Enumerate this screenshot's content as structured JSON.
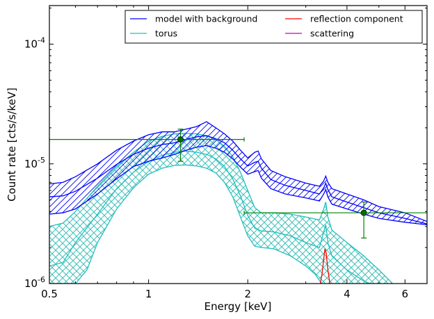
{
  "chart_data": {
    "type": "line",
    "xlabel": "Energy [keV]",
    "ylabel": "Count rate [cts/s/keV]",
    "xscale": "log",
    "yscale": "log",
    "xlim": [
      0.5,
      7.0
    ],
    "ylim": [
      1e-06,
      0.00021
    ],
    "x_ticks": [
      {
        "value": 0.5,
        "label": "0.5"
      },
      {
        "value": 1,
        "label": "1"
      },
      {
        "value": 2,
        "label": "2"
      },
      {
        "value": 4,
        "label": "4"
      },
      {
        "value": 6,
        "label": "6"
      }
    ],
    "y_ticks": [
      {
        "value": 1e-06,
        "base": "10",
        "exp": "-6"
      },
      {
        "value": 1e-05,
        "base": "10",
        "exp": "-5"
      },
      {
        "value": 0.0001,
        "base": "10",
        "exp": "-4"
      }
    ],
    "legend": {
      "placement": "top-right",
      "columns": 2,
      "entries": [
        {
          "label": "model with background",
          "color": "#0000ff"
        },
        {
          "label": "torus",
          "color": "#1fbfbf"
        },
        {
          "label": "reflection component",
          "color": "#ff0000"
        },
        {
          "label": "scattering",
          "color": "#bf00bf"
        }
      ]
    },
    "series": [
      {
        "name": "model with background",
        "color": "#0000ff",
        "hatch": "diagonal",
        "upper": [
          [
            0.5,
            6.8e-06
          ],
          [
            0.55,
            7e-06
          ],
          [
            0.6,
            7.8e-06
          ],
          [
            0.7,
            1e-05
          ],
          [
            0.8,
            1.3e-05
          ],
          [
            0.9,
            1.55e-05
          ],
          [
            1.0,
            1.75e-05
          ],
          [
            1.1,
            1.85e-05
          ],
          [
            1.2,
            1.85e-05
          ],
          [
            1.3,
            1.95e-05
          ],
          [
            1.4,
            2.05e-05
          ],
          [
            1.5,
            2.25e-05
          ],
          [
            1.6,
            2e-05
          ],
          [
            1.7,
            1.78e-05
          ],
          [
            1.8,
            1.55e-05
          ],
          [
            1.9,
            1.3e-05
          ],
          [
            2.0,
            1.12e-05
          ],
          [
            2.1,
            1.25e-05
          ],
          [
            2.15,
            1.28e-05
          ],
          [
            2.2,
            1.1e-05
          ],
          [
            2.35,
            8.8e-06
          ],
          [
            2.6,
            7.8e-06
          ],
          [
            3.0,
            6.9e-06
          ],
          [
            3.3,
            6.5e-06
          ],
          [
            3.4,
            7.2e-06
          ],
          [
            3.45,
            7.9e-06
          ],
          [
            3.5,
            7e-06
          ],
          [
            3.6,
            6.2e-06
          ],
          [
            4.0,
            5.6e-06
          ],
          [
            4.5,
            5e-06
          ],
          [
            5.0,
            4.4e-06
          ],
          [
            6.0,
            3.9e-06
          ],
          [
            7.0,
            3.3e-06
          ]
        ],
        "lower": [
          [
            0.5,
            3.8e-06
          ],
          [
            0.55,
            3.9e-06
          ],
          [
            0.6,
            4.2e-06
          ],
          [
            0.7,
            5.6e-06
          ],
          [
            0.8,
            7.5e-06
          ],
          [
            0.9,
            9.5e-06
          ],
          [
            1.0,
            1.05e-05
          ],
          [
            1.1,
            1.12e-05
          ],
          [
            1.2,
            1.2e-05
          ],
          [
            1.3,
            1.3e-05
          ],
          [
            1.4,
            1.38e-05
          ],
          [
            1.5,
            1.42e-05
          ],
          [
            1.6,
            1.35e-05
          ],
          [
            1.7,
            1.25e-05
          ],
          [
            1.8,
            1.1e-05
          ],
          [
            1.9,
            9.4e-06
          ],
          [
            2.0,
            8.2e-06
          ],
          [
            2.1,
            8.6e-06
          ],
          [
            2.15,
            8.8e-06
          ],
          [
            2.2,
            7.6e-06
          ],
          [
            2.35,
            6.2e-06
          ],
          [
            2.6,
            5.6e-06
          ],
          [
            3.0,
            5.2e-06
          ],
          [
            3.3,
            4.9e-06
          ],
          [
            3.4,
            5.6e-06
          ],
          [
            3.45,
            6.1e-06
          ],
          [
            3.5,
            5.3e-06
          ],
          [
            3.6,
            4.6e-06
          ],
          [
            4.0,
            4.2e-06
          ],
          [
            4.5,
            3.8e-06
          ],
          [
            5.0,
            3.5e-06
          ],
          [
            6.0,
            3.25e-06
          ],
          [
            7.0,
            3.1e-06
          ]
        ],
        "mid": [
          [
            0.5,
            5.3e-06
          ],
          [
            0.55,
            5.4e-06
          ],
          [
            0.6,
            5.9e-06
          ],
          [
            0.7,
            7.6e-06
          ],
          [
            0.8,
            9.9e-06
          ],
          [
            0.9,
            1.2e-05
          ],
          [
            1.0,
            1.35e-05
          ],
          [
            1.1,
            1.45e-05
          ],
          [
            1.2,
            1.5e-05
          ],
          [
            1.3,
            1.6e-05
          ],
          [
            1.4,
            1.68e-05
          ],
          [
            1.5,
            1.72e-05
          ],
          [
            1.6,
            1.62e-05
          ],
          [
            1.7,
            1.5e-05
          ],
          [
            1.8,
            1.3e-05
          ],
          [
            1.9,
            1.1e-05
          ],
          [
            2.0,
            9.6e-06
          ],
          [
            2.1,
            1.03e-05
          ],
          [
            2.15,
            1.05e-05
          ],
          [
            2.2,
            9.2e-06
          ],
          [
            2.35,
            7.4e-06
          ],
          [
            2.6,
            6.6e-06
          ],
          [
            3.0,
            6e-06
          ],
          [
            3.3,
            5.6e-06
          ],
          [
            3.4,
            6.3e-06
          ],
          [
            3.45,
            6.9e-06
          ],
          [
            3.5,
            6.1e-06
          ],
          [
            3.6,
            5.3e-06
          ],
          [
            4.0,
            4.8e-06
          ],
          [
            4.5,
            4.3e-06
          ],
          [
            5.0,
            3.9e-06
          ],
          [
            6.0,
            3.5e-06
          ],
          [
            7.0,
            3.15e-06
          ]
        ]
      },
      {
        "name": "torus",
        "color": "#1fbfbf",
        "hatch": "crosshatch",
        "upper": [
          [
            0.5,
            3e-06
          ],
          [
            0.55,
            3.2e-06
          ],
          [
            0.6,
            4e-06
          ],
          [
            0.7,
            6.5e-06
          ],
          [
            0.8,
            9.5e-06
          ],
          [
            0.9,
            1.25e-05
          ],
          [
            1.0,
            1.55e-05
          ],
          [
            1.1,
            1.7e-05
          ],
          [
            1.2,
            1.78e-05
          ],
          [
            1.3,
            1.8e-05
          ],
          [
            1.4,
            1.78e-05
          ],
          [
            1.5,
            1.72e-05
          ],
          [
            1.6,
            1.6e-05
          ],
          [
            1.7,
            1.4e-05
          ],
          [
            1.8,
            1.15e-05
          ],
          [
            1.9,
            8.5e-06
          ],
          [
            2.0,
            6e-06
          ],
          [
            2.1,
            4.3e-06
          ],
          [
            2.2,
            3.9e-06
          ],
          [
            2.4,
            3.9e-06
          ],
          [
            2.7,
            3.8e-06
          ],
          [
            3.0,
            3.6e-06
          ],
          [
            3.3,
            3.4e-06
          ],
          [
            3.4,
            4.2e-06
          ],
          [
            3.45,
            4.8e-06
          ],
          [
            3.5,
            3.6e-06
          ],
          [
            3.6,
            2.8e-06
          ],
          [
            4.0,
            2.2e-06
          ],
          [
            4.5,
            1.7e-06
          ],
          [
            5.0,
            1.3e-06
          ],
          [
            5.5,
            1e-06
          ]
        ],
        "lower": [
          [
            0.5,
            1e-06
          ],
          [
            0.55,
            1e-06
          ],
          [
            0.6,
            1e-06
          ],
          [
            0.65,
            1.3e-06
          ],
          [
            0.7,
            2.2e-06
          ],
          [
            0.8,
            4.2e-06
          ],
          [
            0.9,
            6.3e-06
          ],
          [
            1.0,
            8.2e-06
          ],
          [
            1.1,
            9.2e-06
          ],
          [
            1.2,
            9.7e-06
          ],
          [
            1.3,
            9.8e-06
          ],
          [
            1.4,
            9.6e-06
          ],
          [
            1.5,
            9.2e-06
          ],
          [
            1.6,
            8.4e-06
          ],
          [
            1.7,
            7e-06
          ],
          [
            1.8,
            5.3e-06
          ],
          [
            1.9,
            3.6e-06
          ],
          [
            2.0,
            2.5e-06
          ],
          [
            2.1,
            2.05e-06
          ],
          [
            2.2,
            2e-06
          ],
          [
            2.4,
            1.95e-06
          ],
          [
            2.7,
            1.7e-06
          ],
          [
            3.0,
            1.4e-06
          ],
          [
            3.2,
            1.2e-06
          ],
          [
            3.35,
            1e-06
          ]
        ],
        "mid": [
          [
            0.5,
            1.4e-06
          ],
          [
            0.55,
            1.5e-06
          ],
          [
            0.6,
            2.2e-06
          ],
          [
            0.7,
            3.8e-06
          ],
          [
            0.8,
            6.2e-06
          ],
          [
            0.9,
            8.5e-06
          ],
          [
            1.0,
            1.05e-05
          ],
          [
            1.1,
            1.18e-05
          ],
          [
            1.2,
            1.25e-05
          ],
          [
            1.3,
            1.28e-05
          ],
          [
            1.4,
            1.25e-05
          ],
          [
            1.5,
            1.2e-05
          ],
          [
            1.6,
            1.1e-05
          ],
          [
            1.7,
            9.5e-06
          ],
          [
            1.8,
            7.5e-06
          ],
          [
            1.9,
            5.4e-06
          ],
          [
            2.0,
            3.7e-06
          ],
          [
            2.1,
            2.9e-06
          ],
          [
            2.2,
            2.75e-06
          ],
          [
            2.4,
            2.7e-06
          ],
          [
            2.7,
            2.5e-06
          ],
          [
            3.0,
            2.2e-06
          ],
          [
            3.3,
            2e-06
          ],
          [
            3.4,
            2.7e-06
          ],
          [
            3.45,
            3.1e-06
          ],
          [
            3.5,
            2.2e-06
          ],
          [
            3.6,
            1.7e-06
          ],
          [
            4.0,
            1.3e-06
          ],
          [
            4.5,
            1.05e-06
          ],
          [
            4.7,
            1e-06
          ]
        ]
      },
      {
        "name": "reflection component",
        "color": "#ff0000",
        "points": [
          [
            3.32,
            1e-06
          ],
          [
            3.36,
            1.2e-06
          ],
          [
            3.4,
            1.6e-06
          ],
          [
            3.43,
            1.95e-06
          ],
          [
            3.46,
            1.8e-06
          ],
          [
            3.5,
            1.3e-06
          ],
          [
            3.55,
            1e-06
          ]
        ]
      },
      {
        "name": "data",
        "color": "#008000",
        "points": [
          {
            "x": 1.25,
            "y": 1.6e-05,
            "xerr": [
              0.5,
              1.95
            ],
            "yerr": [
              1.05e-05,
              1.95e-05
            ]
          },
          {
            "x": 4.5,
            "y": 3.9e-06,
            "xerr": [
              1.95,
              7.0
            ],
            "yerr": [
              2.4e-06,
              4.8e-06
            ]
          }
        ]
      }
    ]
  }
}
